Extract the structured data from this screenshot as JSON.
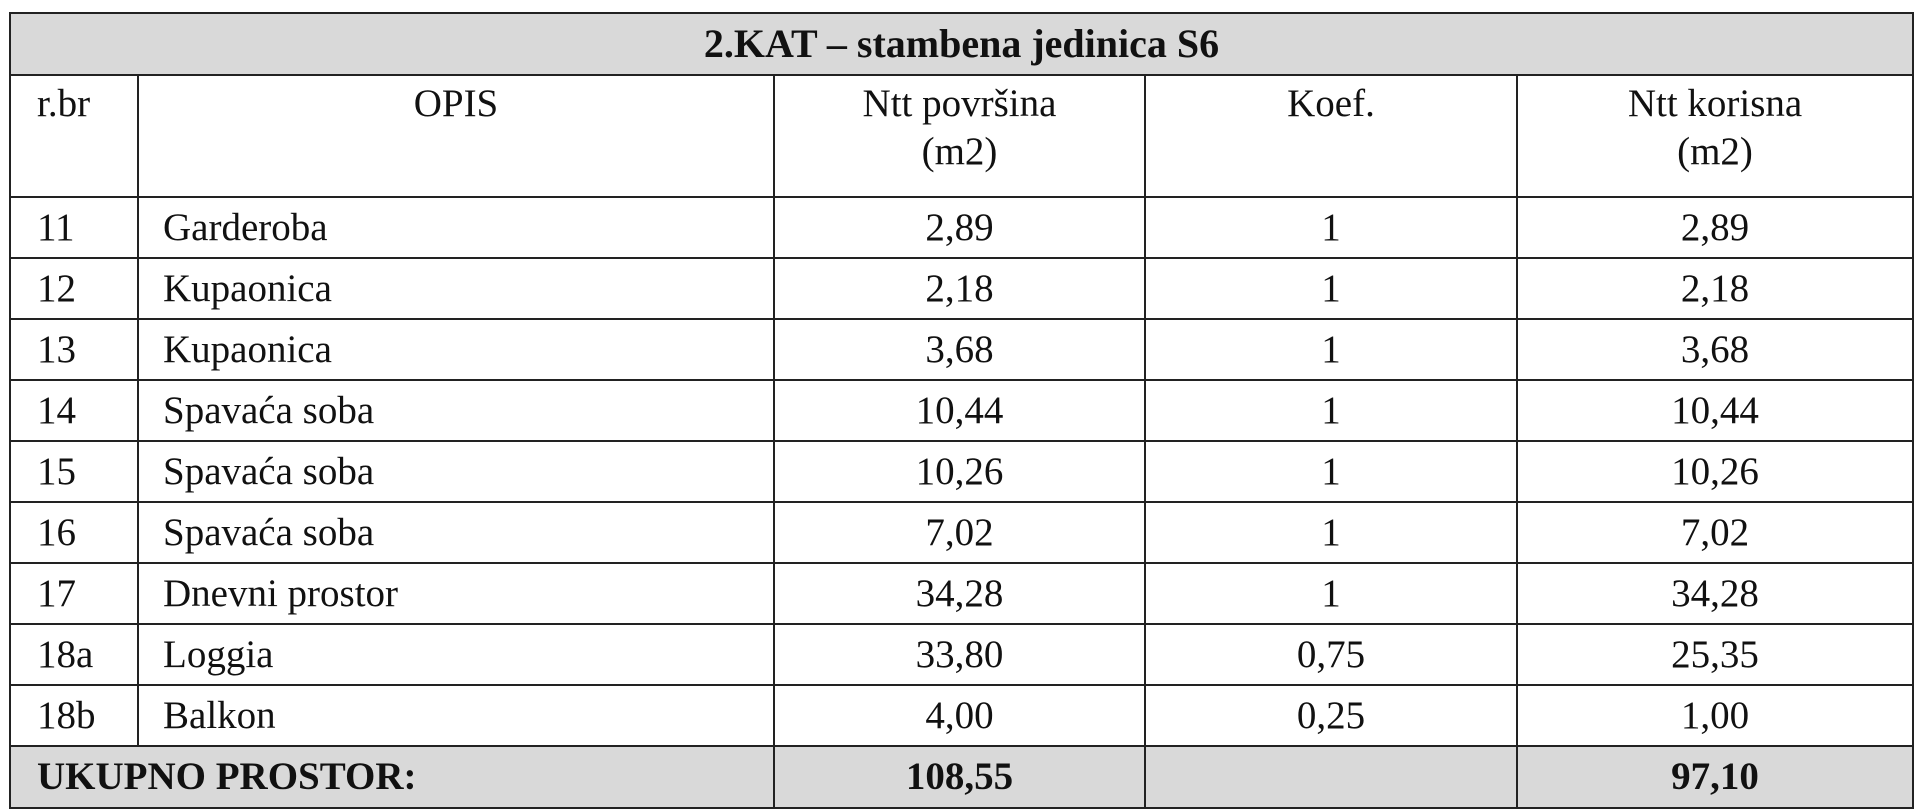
{
  "title": "2.KAT – stambena jedinica S6",
  "columns": {
    "rbr": "r.br",
    "opis": "OPIS",
    "povrsina_line1": "Ntt površina",
    "povrsina_line2": "(m2)",
    "koef": "Koef.",
    "korisna_line1": "Ntt korisna",
    "korisna_line2": "(m2)"
  },
  "rows": [
    {
      "rbr": "11",
      "opis": "Garderoba",
      "povrsina": "2,89",
      "koef": "1",
      "korisna": "2,89"
    },
    {
      "rbr": "12",
      "opis": "Kupaonica",
      "povrsina": "2,18",
      "koef": "1",
      "korisna": "2,18"
    },
    {
      "rbr": "13",
      "opis": "Kupaonica",
      "povrsina": "3,68",
      "koef": "1",
      "korisna": "3,68"
    },
    {
      "rbr": "14",
      "opis": "Spavaća soba",
      "povrsina": "10,44",
      "koef": "1",
      "korisna": "10,44"
    },
    {
      "rbr": "15",
      "opis": "Spavaća soba",
      "povrsina": "10,26",
      "koef": "1",
      "korisna": "10,26"
    },
    {
      "rbr": "16",
      "opis": "Spavaća soba",
      "povrsina": "7,02",
      "koef": "1",
      "korisna": "7,02"
    },
    {
      "rbr": "17",
      "opis": "Dnevni prostor",
      "povrsina": "34,28",
      "koef": "1",
      "korisna": "34,28"
    },
    {
      "rbr": "18a",
      "opis": "Loggia",
      "povrsina": "33,80",
      "koef": "0,75",
      "korisna": "25,35"
    },
    {
      "rbr": "18b",
      "opis": "Balkon",
      "povrsina": "4,00",
      "koef": "0,25",
      "korisna": "1,00"
    }
  ],
  "total": {
    "label": "UKUPNO PROSTOR:",
    "povrsina": "108,55",
    "korisna": "97,10"
  },
  "colors": {
    "header_fill": "#d9d9d9",
    "border": "#222222"
  }
}
